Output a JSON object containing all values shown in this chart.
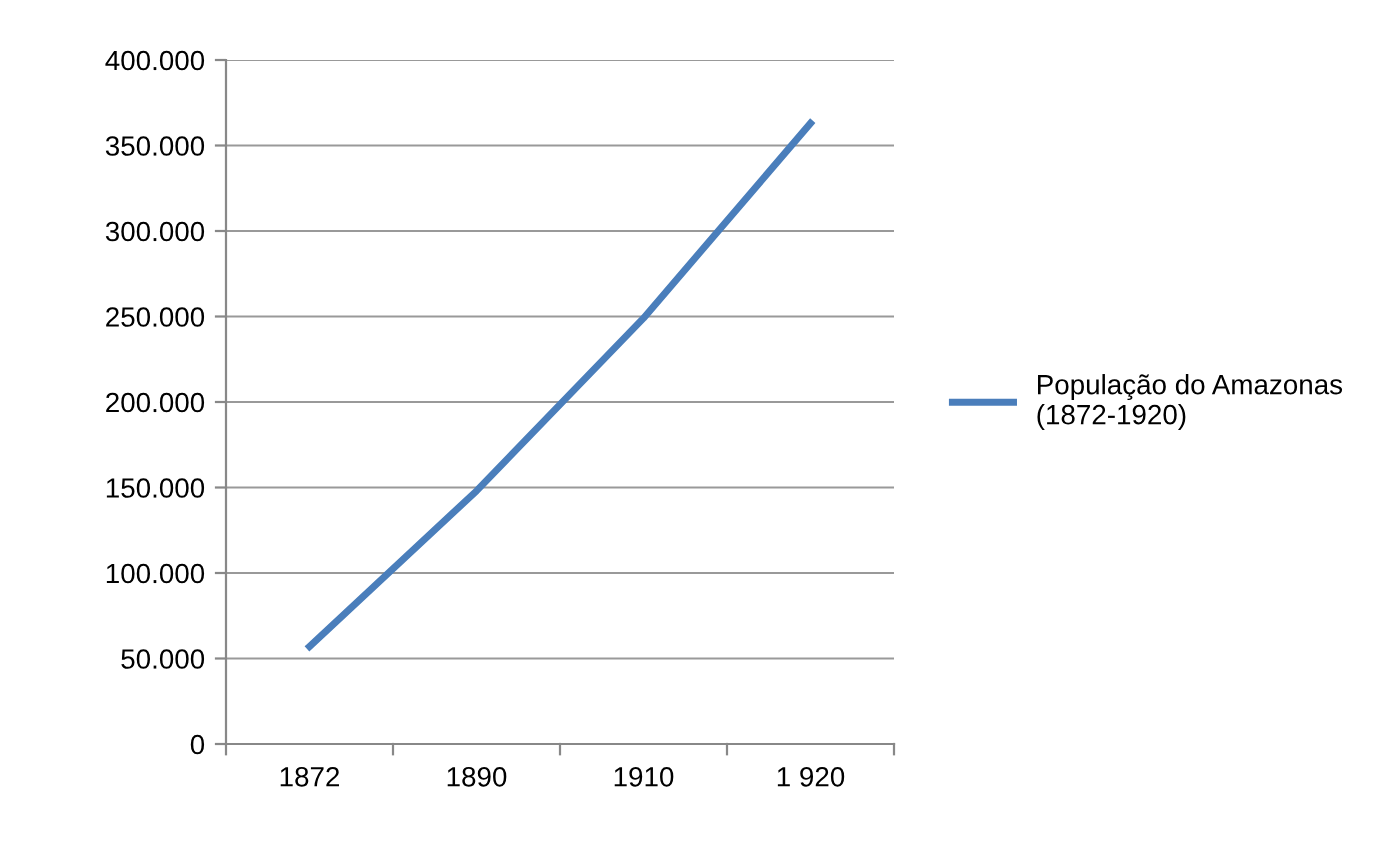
{
  "chart_data": {
    "type": "line",
    "categories": [
      "1872",
      "1890",
      "1910",
      "1 920"
    ],
    "series": [
      {
        "name": "População do Amazonas\n(1872-1920)",
        "color": "#4a7ebb",
        "values": [
          57000,
          148000,
          249000,
          363000
        ]
      }
    ],
    "ylim": [
      0,
      400000
    ],
    "yticks": [
      {
        "value": 0,
        "label": "0"
      },
      {
        "value": 50000,
        "label": "50.000"
      },
      {
        "value": 100000,
        "label": "100.000"
      },
      {
        "value": 150000,
        "label": "150.000"
      },
      {
        "value": 200000,
        "label": "200.000"
      },
      {
        "value": 250000,
        "label": "250.000"
      },
      {
        "value": 300000,
        "label": "300.000"
      },
      {
        "value": 350000,
        "label": "350.000"
      },
      {
        "value": 400000,
        "label": "400.000"
      }
    ],
    "grid": "y",
    "legend": "right",
    "marker": "none",
    "line_style": "solid"
  }
}
